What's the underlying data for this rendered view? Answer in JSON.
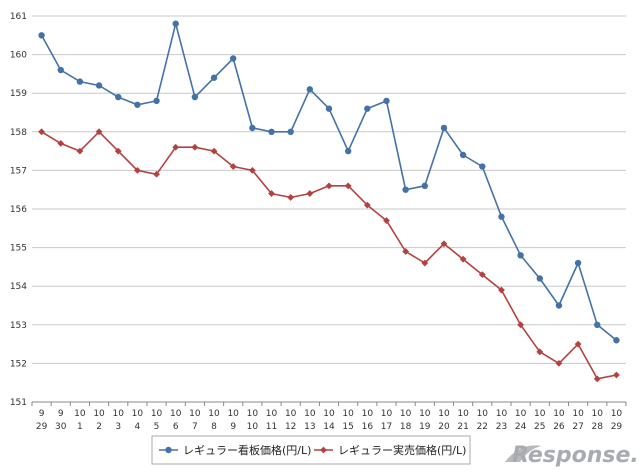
{
  "chart_data": {
    "type": "line",
    "title": "",
    "xlabel": "",
    "ylabel": "",
    "ylim": [
      151,
      161
    ],
    "yticks": [
      "151",
      "152",
      "153",
      "154",
      "155",
      "156",
      "157",
      "158",
      "159",
      "160",
      "161"
    ],
    "grid": true,
    "categories": [
      {
        "m": "9",
        "d": "29"
      },
      {
        "m": "9",
        "d": "30"
      },
      {
        "m": "10",
        "d": "1"
      },
      {
        "m": "10",
        "d": "2"
      },
      {
        "m": "10",
        "d": "3"
      },
      {
        "m": "10",
        "d": "4"
      },
      {
        "m": "10",
        "d": "5"
      },
      {
        "m": "10",
        "d": "6"
      },
      {
        "m": "10",
        "d": "7"
      },
      {
        "m": "10",
        "d": "8"
      },
      {
        "m": "10",
        "d": "9"
      },
      {
        "m": "10",
        "d": "10"
      },
      {
        "m": "10",
        "d": "11"
      },
      {
        "m": "10",
        "d": "12"
      },
      {
        "m": "10",
        "d": "13"
      },
      {
        "m": "10",
        "d": "14"
      },
      {
        "m": "10",
        "d": "15"
      },
      {
        "m": "10",
        "d": "16"
      },
      {
        "m": "10",
        "d": "17"
      },
      {
        "m": "10",
        "d": "18"
      },
      {
        "m": "10",
        "d": "19"
      },
      {
        "m": "10",
        "d": "20"
      },
      {
        "m": "10",
        "d": "21"
      },
      {
        "m": "10",
        "d": "22"
      },
      {
        "m": "10",
        "d": "23"
      },
      {
        "m": "10",
        "d": "24"
      },
      {
        "m": "10",
        "d": "25"
      },
      {
        "m": "10",
        "d": "26"
      },
      {
        "m": "10",
        "d": "27"
      },
      {
        "m": "10",
        "d": "28"
      },
      {
        "m": "10",
        "d": "29"
      }
    ],
    "series": [
      {
        "name": "レギュラー看板価格(円/L)",
        "color": "#4472a8",
        "marker": "circle",
        "values": [
          160.5,
          159.6,
          159.3,
          159.2,
          158.9,
          158.7,
          158.8,
          160.8,
          158.9,
          159.4,
          159.9,
          158.1,
          158.0,
          158.0,
          159.1,
          158.6,
          157.5,
          158.6,
          158.8,
          156.5,
          156.6,
          158.1,
          157.4,
          157.1,
          155.8,
          154.8,
          154.2,
          153.5,
          154.6,
          153.0,
          152.6
        ]
      },
      {
        "name": "レギュラー実売価格(円/L)",
        "color": "#b5413f",
        "marker": "diamond",
        "values": [
          158.0,
          157.7,
          157.5,
          158.0,
          157.5,
          157.0,
          156.9,
          157.6,
          157.6,
          157.5,
          157.1,
          157.0,
          156.4,
          156.3,
          156.4,
          156.6,
          156.6,
          156.1,
          155.7,
          154.9,
          154.6,
          155.1,
          154.7,
          154.3,
          153.9,
          153.0,
          152.3,
          152.0,
          152.5,
          151.6,
          151.7
        ]
      }
    ],
    "legend": "bottom"
  },
  "watermark": {
    "text": "Response."
  }
}
